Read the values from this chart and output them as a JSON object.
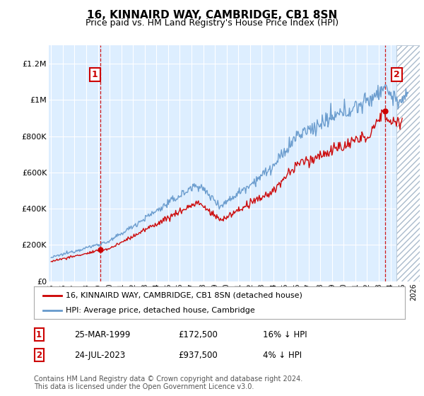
{
  "title": "16, KINNAIRD WAY, CAMBRIDGE, CB1 8SN",
  "subtitle": "Price paid vs. HM Land Registry's House Price Index (HPI)",
  "title_fontsize": 11,
  "subtitle_fontsize": 9,
  "bg_color": "#ddeeff",
  "ylim": [
    0,
    1300000
  ],
  "xlim_start": 1994.8,
  "xlim_end": 2026.5,
  "sale1_x": 1999.23,
  "sale1_y": 172500,
  "sale2_x": 2023.56,
  "sale2_y": 937500,
  "sale_color": "#cc0000",
  "hpi_color": "#6699cc",
  "legend_label1": "16, KINNAIRD WAY, CAMBRIDGE, CB1 8SN (detached house)",
  "legend_label2": "HPI: Average price, detached house, Cambridge",
  "table_rows": [
    {
      "num": "1",
      "date": "25-MAR-1999",
      "price": "£172,500",
      "hpi": "16% ↓ HPI"
    },
    {
      "num": "2",
      "date": "24-JUL-2023",
      "price": "£937,500",
      "hpi": "4% ↓ HPI"
    }
  ],
  "footer": "Contains HM Land Registry data © Crown copyright and database right 2024.\nThis data is licensed under the Open Government Licence v3.0.",
  "ytick_labels": [
    "£0",
    "£200K",
    "£400K",
    "£600K",
    "£800K",
    "£1M",
    "£1.2M"
  ],
  "ytick_values": [
    0,
    200000,
    400000,
    600000,
    800000,
    1000000,
    1200000
  ]
}
